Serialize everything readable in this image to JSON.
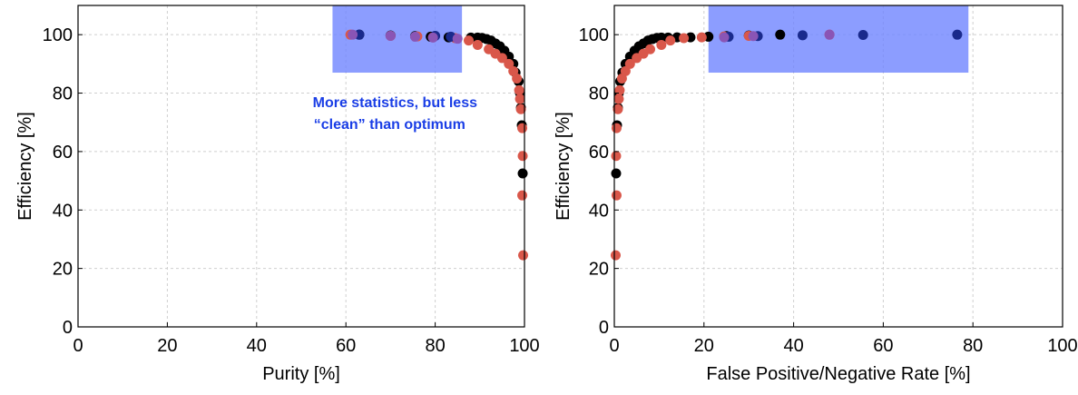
{
  "chart_data": [
    {
      "type": "scatter",
      "title": "",
      "xlabel": "Purity [%]",
      "ylabel": "Efficiency [%]",
      "xlim": [
        0,
        100
      ],
      "ylim": [
        0,
        110
      ],
      "xticks": [
        "0",
        "20",
        "40",
        "60",
        "80",
        "100"
      ],
      "yticks": [
        "0",
        "20",
        "40",
        "60",
        "80",
        "100"
      ],
      "grid": true,
      "highlight_box": {
        "x": [
          57,
          86
        ],
        "y": [
          87,
          110
        ],
        "color": "#6f85ff"
      },
      "annotation": "More statistics, but less “clean” than optimum",
      "annotation_lines": [
        "More statistics, but less",
        "“clean” than optimum"
      ],
      "annotation_color": "#1a3ee6",
      "series": [
        {
          "color": "#000000",
          "points": [
            [
              63,
              100
            ],
            [
              70,
              99.7
            ],
            [
              75.5,
              99.5
            ],
            [
              79,
              99.3
            ],
            [
              83,
              99.1
            ],
            [
              88,
              99
            ],
            [
              89.5,
              99
            ],
            [
              90.5,
              98.9
            ],
            [
              91.5,
              98.5
            ],
            [
              92.5,
              98
            ],
            [
              93.5,
              97
            ],
            [
              94.5,
              96
            ],
            [
              95.5,
              94.5
            ],
            [
              96.5,
              92.5
            ],
            [
              97.5,
              90
            ],
            [
              98,
              87
            ],
            [
              98.7,
              84
            ],
            [
              99,
              80
            ],
            [
              99.2,
              75
            ],
            [
              99.4,
              69
            ],
            [
              99.6,
              52.5
            ]
          ]
        },
        {
          "color": "#d9574a",
          "points": [
            [
              61,
              100
            ],
            [
              70,
              99.6
            ],
            [
              76,
              99.4
            ],
            [
              79.5,
              99.1
            ],
            [
              84.5,
              98.8
            ],
            [
              87.5,
              98
            ],
            [
              89.5,
              96.5
            ],
            [
              92,
              95
            ],
            [
              93.5,
              93.5
            ],
            [
              95,
              92
            ],
            [
              96.5,
              90
            ],
            [
              97.5,
              87.5
            ],
            [
              98.3,
              85
            ],
            [
              98.8,
              81
            ],
            [
              99,
              78
            ],
            [
              99.2,
              74.5
            ],
            [
              99.5,
              68
            ],
            [
              99.6,
              58.5
            ],
            [
              99.5,
              45
            ],
            [
              99.7,
              24.5
            ]
          ]
        },
        {
          "color": "#1a2a8c",
          "points": [
            [
              63,
              100
            ],
            [
              80,
              99.6
            ],
            [
              83.5,
              99.3
            ]
          ]
        },
        {
          "color": "#8a55b5",
          "points": [
            [
              61.5,
              100
            ],
            [
              70,
              99.6
            ],
            [
              75.5,
              99.3
            ],
            [
              79.5,
              99
            ],
            [
              85,
              98.6
            ]
          ]
        }
      ]
    },
    {
      "type": "scatter",
      "title": "",
      "xlabel": "False Positive/Negative Rate [%]",
      "ylabel": "Efficiency [%]",
      "xlim": [
        0,
        100
      ],
      "ylim": [
        0,
        110
      ],
      "xticks": [
        "0",
        "20",
        "40",
        "60",
        "80",
        "100"
      ],
      "yticks": [
        "0",
        "20",
        "40",
        "60",
        "80",
        "100"
      ],
      "grid": true,
      "highlight_box": {
        "x": [
          21,
          79
        ],
        "y": [
          87,
          110
        ],
        "color": "#6f85ff"
      },
      "series": [
        {
          "color": "#000000",
          "points": [
            [
              0.4,
              52.5
            ],
            [
              0.6,
              69
            ],
            [
              0.8,
              75
            ],
            [
              1,
              80
            ],
            [
              1.3,
              84
            ],
            [
              1.8,
              87
            ],
            [
              2.5,
              90
            ],
            [
              3.5,
              92.5
            ],
            [
              4.5,
              94.5
            ],
            [
              5.5,
              96
            ],
            [
              6.5,
              97
            ],
            [
              7.5,
              98
            ],
            [
              8.5,
              98.5
            ],
            [
              9.5,
              98.9
            ],
            [
              10.5,
              99
            ],
            [
              12,
              99
            ],
            [
              14,
              99.1
            ],
            [
              17,
              99.1
            ],
            [
              21,
              99.3
            ],
            [
              25,
              99.5
            ],
            [
              30,
              99.7
            ],
            [
              37,
              100
            ]
          ]
        },
        {
          "color": "#d9574a",
          "points": [
            [
              0.3,
              24.5
            ],
            [
              0.5,
              45
            ],
            [
              0.4,
              58.5
            ],
            [
              0.5,
              68
            ],
            [
              0.8,
              74.5
            ],
            [
              1,
              78
            ],
            [
              1.2,
              81
            ],
            [
              1.7,
              85
            ],
            [
              2.5,
              87.5
            ],
            [
              3.5,
              90
            ],
            [
              5,
              92
            ],
            [
              6.5,
              93.5
            ],
            [
              8,
              95
            ],
            [
              10.5,
              96.5
            ],
            [
              12.5,
              98
            ],
            [
              15.5,
              98.8
            ],
            [
              19.5,
              99.1
            ],
            [
              24.5,
              99.4
            ],
            [
              30,
              99.6
            ],
            [
              48,
              100
            ]
          ]
        },
        {
          "color": "#1a2a8c",
          "points": [
            [
              25.5,
              99.3
            ],
            [
              32,
              99.5
            ],
            [
              42,
              99.8
            ],
            [
              55.5,
              99.9
            ],
            [
              76.5,
              100
            ]
          ]
        },
        {
          "color": "#8a55b5",
          "points": [
            [
              24.5,
              99.1
            ],
            [
              31,
              99.5
            ],
            [
              48,
              100
            ]
          ]
        }
      ]
    }
  ]
}
